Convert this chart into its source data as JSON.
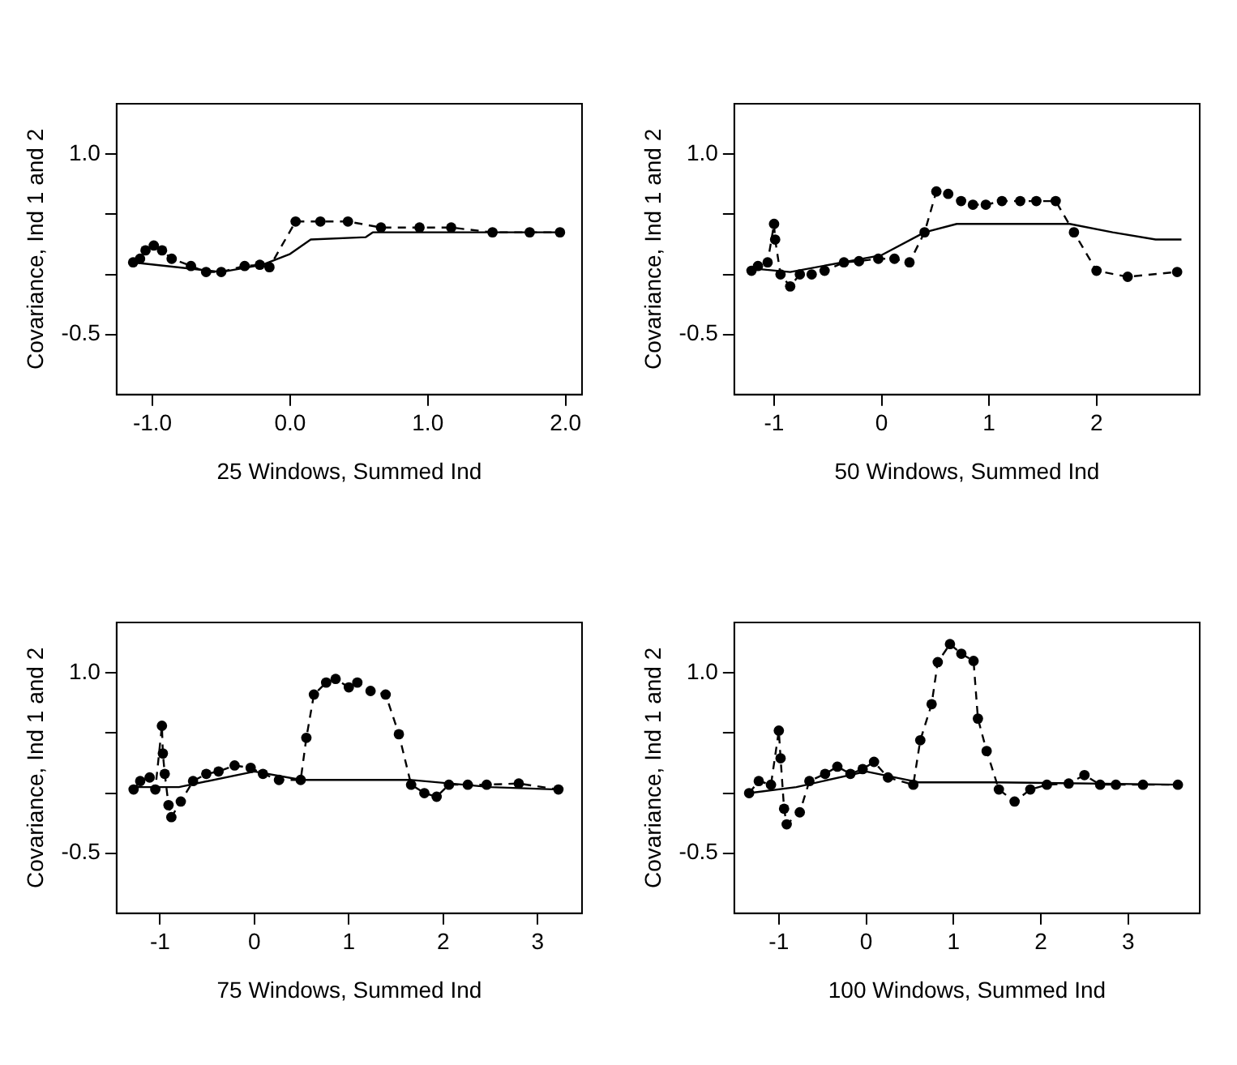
{
  "chart_data": [
    {
      "type": "line",
      "xlabel": "25 Windows, Summed Ind",
      "ylabel": "Covariance, Ind 1 and 2",
      "xlim": [
        -1.26,
        2.12
      ],
      "xticks": [
        {
          "value": -1,
          "label": "-1.0"
        },
        {
          "value": 0,
          "label": "0.0"
        },
        {
          "value": 1,
          "label": "1.0"
        },
        {
          "value": 2,
          "label": "2.0"
        }
      ],
      "ylim": [
        -1.0,
        1.42
      ],
      "yticks": [
        {
          "value": -0.5,
          "label": "-0.5"
        },
        {
          "value": 0,
          "label": null
        },
        {
          "value": 0.5,
          "label": null
        },
        {
          "value": 1,
          "label": "1.0"
        }
      ],
      "marker": "circle",
      "line_style": "dashed",
      "series": [
        {
          "color": "#000000",
          "x": [
            -1.14,
            -1.09,
            -1.05,
            -0.99,
            -0.93,
            -0.86,
            -0.72,
            -0.61,
            -0.5,
            -0.33,
            -0.22,
            -0.15,
            0.04,
            0.22,
            0.42,
            0.66,
            0.94,
            1.17,
            1.47,
            1.74,
            1.96
          ],
          "values": [
            0.1,
            0.13,
            0.2,
            0.24,
            0.2,
            0.13,
            0.07,
            0.02,
            0.02,
            0.07,
            0.08,
            0.06,
            0.44,
            0.44,
            0.44,
            0.39,
            0.39,
            0.39,
            0.35,
            0.35,
            0.35
          ]
        },
        {
          "color": "#000000",
          "marker": "none",
          "line_style": "solid",
          "x": [
            -1.14,
            -0.5,
            -0.2,
            0.0,
            0.15,
            0.55,
            0.6,
            1.96
          ],
          "values": [
            0.1,
            0.02,
            0.08,
            0.17,
            0.29,
            0.31,
            0.35,
            0.35
          ]
        }
      ]
    },
    {
      "type": "line",
      "xlabel": "50 Windows, Summed Ind",
      "ylabel": "Covariance, Ind 1 and 2",
      "xlim": [
        -1.37,
        2.96
      ],
      "xticks": [
        -1,
        0,
        1,
        2
      ],
      "ylim": [
        -1.0,
        1.42
      ],
      "yticks": [
        {
          "value": -0.5,
          "label": "-0.5"
        },
        {
          "value": 0,
          "label": null
        },
        {
          "value": 0.5,
          "label": null
        },
        {
          "value": 1,
          "label": "1.0"
        }
      ],
      "marker": "circle",
      "line_style": "dashed",
      "series": [
        {
          "color": "#000000",
          "x": [
            -1.21,
            -1.15,
            -1.06,
            -1.0,
            -0.99,
            -0.94,
            -0.85,
            -0.76,
            -0.65,
            -0.53,
            -0.35,
            -0.21,
            -0.03,
            0.12,
            0.26,
            0.4,
            0.51,
            0.62,
            0.74,
            0.85,
            0.97,
            1.12,
            1.29,
            1.44,
            1.62,
            1.79,
            2.0,
            2.29,
            2.75
          ],
          "values": [
            0.03,
            0.07,
            0.1,
            0.42,
            0.29,
            0.0,
            -0.1,
            0.0,
            0.0,
            0.03,
            0.1,
            0.11,
            0.13,
            0.13,
            0.1,
            0.35,
            0.69,
            0.67,
            0.61,
            0.58,
            0.58,
            0.61,
            0.61,
            0.61,
            0.61,
            0.35,
            0.03,
            -0.02,
            0.02
          ]
        },
        {
          "color": "#000000",
          "marker": "none",
          "line_style": "solid",
          "x": [
            -1.21,
            -0.85,
            0,
            0.4,
            0.7,
            1.75,
            2.15,
            2.55,
            2.79
          ],
          "values": [
            0.05,
            0.02,
            0.16,
            0.35,
            0.42,
            0.42,
            0.35,
            0.29,
            0.29
          ]
        }
      ]
    },
    {
      "type": "line",
      "xlabel": "75 Windows, Summed Ind",
      "ylabel": "Covariance, Ind 1 and 2",
      "xlim": [
        -1.46,
        3.47
      ],
      "xticks": [
        -1,
        0,
        1,
        2,
        3
      ],
      "ylim": [
        -1.0,
        1.42
      ],
      "yticks": [
        {
          "value": -0.5,
          "label": "-0.5"
        },
        {
          "value": 0,
          "label": null
        },
        {
          "value": 0.5,
          "label": null
        },
        {
          "value": 1,
          "label": "1.0"
        }
      ],
      "marker": "circle",
      "line_style": "dashed",
      "series": [
        {
          "color": "#000000",
          "x": [
            -1.28,
            -1.21,
            -1.11,
            -1.05,
            -0.98,
            -0.97,
            -0.95,
            -0.91,
            -0.88,
            -0.78,
            -0.65,
            -0.51,
            -0.38,
            -0.21,
            -0.04,
            0.09,
            0.26,
            0.49,
            0.55,
            0.63,
            0.76,
            0.86,
            1.0,
            1.09,
            1.23,
            1.39,
            1.53,
            1.66,
            1.8,
            1.93,
            2.06,
            2.26,
            2.46,
            2.8,
            3.22
          ],
          "values": [
            0.03,
            0.1,
            0.13,
            0.03,
            0.56,
            0.33,
            0.16,
            -0.1,
            -0.2,
            -0.07,
            0.1,
            0.16,
            0.18,
            0.23,
            0.21,
            0.16,
            0.11,
            0.11,
            0.46,
            0.82,
            0.92,
            0.95,
            0.88,
            0.92,
            0.85,
            0.82,
            0.49,
            0.07,
            0.0,
            -0.03,
            0.07,
            0.07,
            0.07,
            0.08,
            0.03
          ]
        },
        {
          "color": "#000000",
          "marker": "none",
          "line_style": "solid",
          "x": [
            -1.28,
            -0.8,
            0,
            0.5,
            1.65,
            2.5,
            3.22
          ],
          "values": [
            0.05,
            0.05,
            0.18,
            0.11,
            0.11,
            0.05,
            0.03
          ]
        }
      ]
    },
    {
      "type": "line",
      "xlabel": "100 Windows, Summed Ind",
      "ylabel": "Covariance, Ind 1 and 2",
      "xlim": [
        -1.51,
        3.82
      ],
      "xticks": [
        -1,
        0,
        1,
        2,
        3
      ],
      "ylim": [
        -1.0,
        1.42
      ],
      "yticks": [
        {
          "value": -0.5,
          "label": "-0.5"
        },
        {
          "value": 0,
          "label": null
        },
        {
          "value": 0.5,
          "label": null
        },
        {
          "value": 1,
          "label": "1.0"
        }
      ],
      "marker": "circle",
      "line_style": "dashed",
      "series": [
        {
          "color": "#000000",
          "x": [
            -1.34,
            -1.23,
            -1.09,
            -1.0,
            -0.98,
            -0.94,
            -0.91,
            -0.76,
            -0.65,
            -0.47,
            -0.33,
            -0.18,
            -0.04,
            0.09,
            0.25,
            0.54,
            0.62,
            0.75,
            0.82,
            0.96,
            1.09,
            1.23,
            1.28,
            1.38,
            1.52,
            1.7,
            1.88,
            2.07,
            2.32,
            2.5,
            2.68,
            2.86,
            3.17,
            3.57
          ],
          "values": [
            0.0,
            0.1,
            0.07,
            0.52,
            0.29,
            -0.13,
            -0.26,
            -0.16,
            0.1,
            0.16,
            0.22,
            0.16,
            0.2,
            0.26,
            0.13,
            0.07,
            0.44,
            0.74,
            1.09,
            1.24,
            1.16,
            1.1,
            0.62,
            0.35,
            0.03,
            -0.07,
            0.03,
            0.07,
            0.08,
            0.15,
            0.07,
            0.07,
            0.07,
            0.07
          ]
        },
        {
          "color": "#000000",
          "marker": "none",
          "line_style": "solid",
          "x": [
            -1.34,
            -0.8,
            0,
            0.6,
            1.45,
            3.57
          ],
          "values": [
            0.0,
            0.05,
            0.18,
            0.09,
            0.09,
            0.07
          ]
        }
      ]
    }
  ]
}
